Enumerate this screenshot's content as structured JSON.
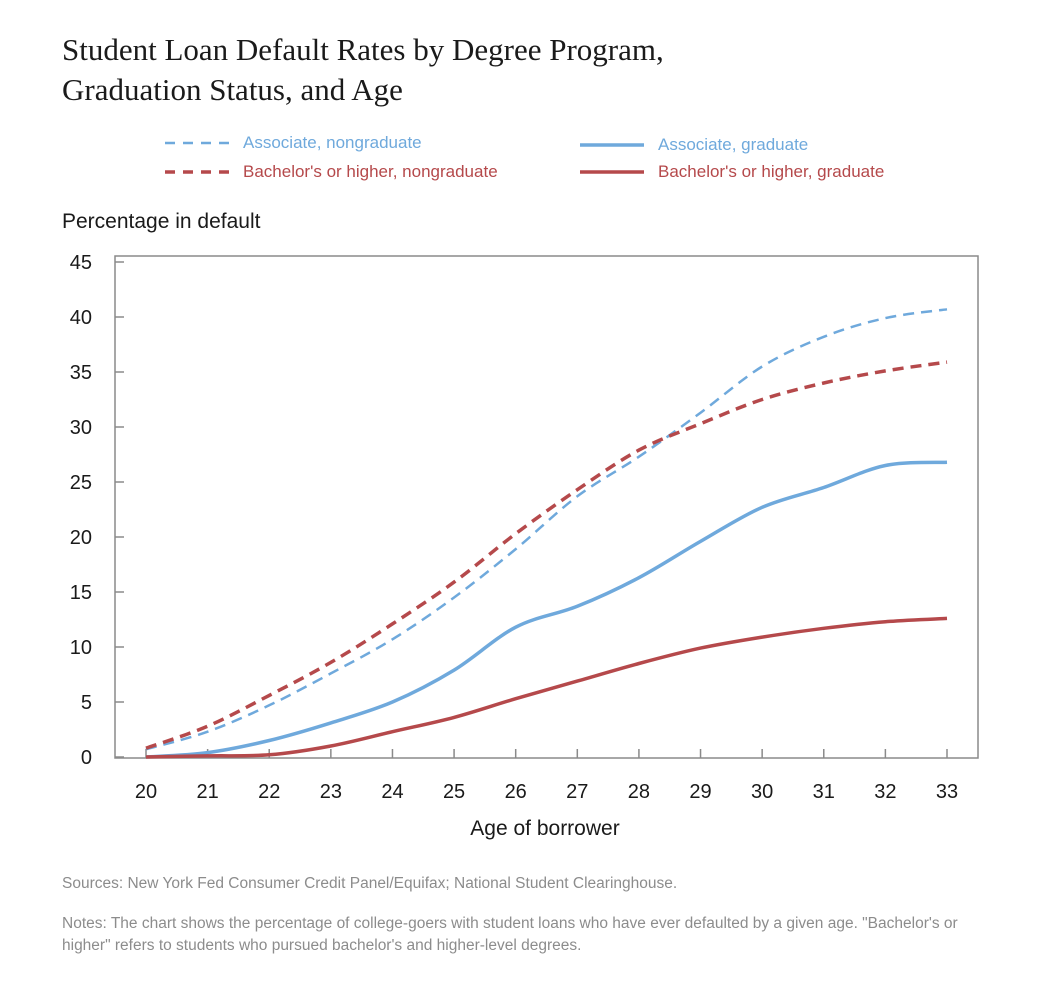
{
  "title_line1": "Student Loan Default Rates by Degree Program,",
  "title_line2": "Graduation Status, and Age",
  "sources": "Sources: New York Fed Consumer Credit Panel/Equifax; National Student Clearinghouse.",
  "notes": "Notes: The chart shows the percentage of college-goers with student loans who have ever defaulted by a given age. \"Bachelor's or higher\" refers to students who pursued bachelor's and higher-level degrees.",
  "colors": {
    "blue": "#6fa9dc",
    "red": "#b5494b"
  },
  "chart_data": {
    "type": "line",
    "ylabel": "Percentage in default",
    "xlabel": "Age of borrower",
    "xlim": [
      20,
      33
    ],
    "ylim": [
      0,
      45
    ],
    "x_ticks": [
      20,
      21,
      22,
      23,
      24,
      25,
      26,
      27,
      28,
      29,
      30,
      31,
      32,
      33
    ],
    "y_ticks": [
      0,
      5,
      10,
      15,
      20,
      25,
      30,
      35,
      40,
      45
    ],
    "grid": false,
    "legend_position": "top",
    "x": [
      20,
      21,
      22,
      23,
      24,
      25,
      26,
      27,
      28,
      29,
      30,
      31,
      32,
      33
    ],
    "series": [
      {
        "name": "Associate, nongraduate",
        "color": "#6fa9dc",
        "style": "dashed",
        "values": [
          0.7,
          2.3,
          4.7,
          7.6,
          10.7,
          14.5,
          18.9,
          23.7,
          27.3,
          31.3,
          35.5,
          38.2,
          39.9,
          40.7
        ]
      },
      {
        "name": "Bachelor's or higher, nongraduate",
        "color": "#b5494b",
        "style": "dashed",
        "values": [
          0.8,
          2.8,
          5.6,
          8.6,
          12.1,
          15.9,
          20.3,
          24.3,
          27.9,
          30.3,
          32.5,
          34.0,
          35.1,
          35.9
        ]
      },
      {
        "name": "Associate, graduate",
        "color": "#6fa9dc",
        "style": "solid",
        "values": [
          0.0,
          0.4,
          1.5,
          3.1,
          5.0,
          7.9,
          11.8,
          13.7,
          16.3,
          19.6,
          22.7,
          24.5,
          26.5,
          26.8
        ]
      },
      {
        "name": "Bachelor's or higher, graduate",
        "color": "#b5494b",
        "style": "solid",
        "values": [
          0.0,
          0.1,
          0.2,
          1.0,
          2.3,
          3.6,
          5.3,
          6.9,
          8.5,
          9.9,
          10.9,
          11.7,
          12.3,
          12.6
        ]
      }
    ]
  }
}
